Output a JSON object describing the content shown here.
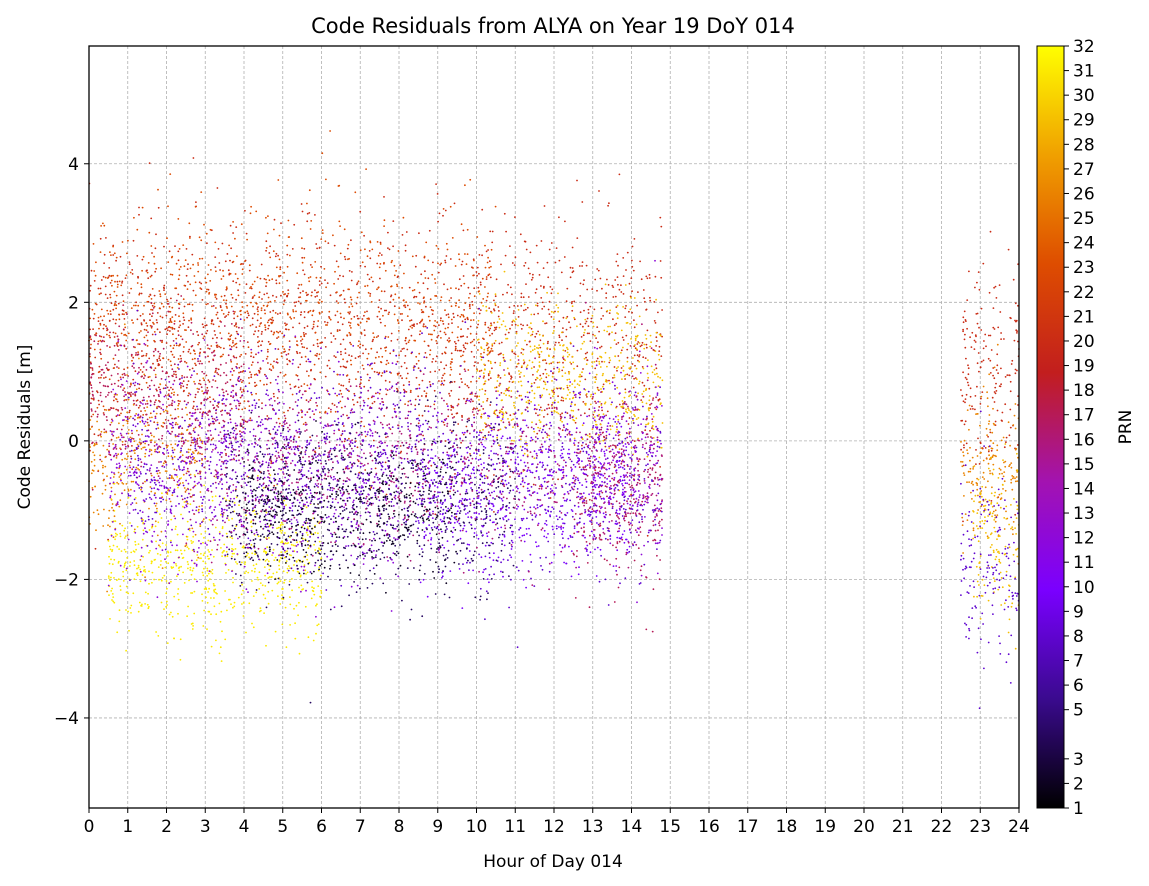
{
  "chart_data": {
    "type": "scatter",
    "title": "Code Residuals from ALYA on Year 19 DoY 014",
    "xlabel": "Hour of Day 014",
    "ylabel": "Code Residuals [m]",
    "colorbar_label": "PRN",
    "xlim": [
      0,
      24
    ],
    "ylim": [
      -5.3,
      5.7
    ],
    "x_ticks": [
      "0",
      "1",
      "2",
      "3",
      "4",
      "5",
      "6",
      "7",
      "8",
      "9",
      "10",
      "11",
      "12",
      "13",
      "14",
      "15",
      "16",
      "17",
      "18",
      "19",
      "20",
      "21",
      "22",
      "23",
      "24"
    ],
    "y_ticks": [
      "−4",
      "−2",
      "0",
      "2",
      "4"
    ],
    "y_tick_values": [
      -4,
      -2,
      0,
      2,
      4
    ],
    "colorbar_ticks": [
      "1",
      "2",
      "3",
      "5",
      "6",
      "7",
      "8",
      "9",
      "10",
      "11",
      "12",
      "13",
      "14",
      "15",
      "16",
      "17",
      "18",
      "19",
      "20",
      "21",
      "22",
      "23",
      "24",
      "25",
      "26",
      "27",
      "28",
      "29",
      "30",
      "31",
      "32"
    ],
    "colorbar_tick_values": [
      1,
      2,
      3,
      5,
      6,
      7,
      8,
      9,
      10,
      11,
      12,
      13,
      14,
      15,
      16,
      17,
      18,
      19,
      20,
      21,
      22,
      23,
      24,
      25,
      26,
      27,
      28,
      29,
      30,
      31,
      32
    ],
    "colormap": "gnuplot",
    "colormap_stops": [
      "#000000",
      "#3a0a8e",
      "#7a00ff",
      "#a313b0",
      "#c21e1e",
      "#de4d00",
      "#f0a000",
      "#ffff00"
    ],
    "grid": true,
    "grid_style": "dashed",
    "series": [
      {
        "prn": 20,
        "segments": [
          [
            0.0,
            14.8,
            1.4
          ],
          [
            22.5,
            24.0,
            0.9
          ]
        ],
        "spread": 0.85,
        "density": 120
      },
      {
        "prn": 23,
        "segments": [
          [
            0.0,
            10.5,
            1.8
          ]
        ],
        "spread": 0.75,
        "density": 90
      },
      {
        "prn": 17,
        "segments": [
          [
            0.0,
            4.0,
            0.6
          ],
          [
            12.5,
            14.8,
            -0.9
          ]
        ],
        "spread": 0.6,
        "density": 110
      },
      {
        "prn": 26,
        "segments": [
          [
            0.0,
            3.0,
            -0.3
          ],
          [
            22.5,
            24.0,
            -0.4
          ]
        ],
        "spread": 0.6,
        "density": 110
      },
      {
        "prn": 31,
        "segments": [
          [
            0.5,
            6.0,
            -1.8
          ]
        ],
        "spread": 0.5,
        "density": 120
      },
      {
        "prn": 29,
        "segments": [
          [
            10.0,
            14.8,
            0.9
          ],
          [
            22.8,
            24.0,
            -1.4
          ]
        ],
        "spread": 0.55,
        "density": 120
      },
      {
        "prn": 8,
        "segments": [
          [
            1.0,
            9.0,
            -0.2
          ],
          [
            9.0,
            14.8,
            -0.6
          ],
          [
            22.5,
            24.0,
            -1.8
          ]
        ],
        "spread": 0.7,
        "density": 100
      },
      {
        "prn": 12,
        "segments": [
          [
            0.5,
            8.0,
            -0.5
          ],
          [
            13.0,
            14.8,
            -0.4
          ]
        ],
        "spread": 0.7,
        "density": 110
      },
      {
        "prn": 4,
        "segments": [
          [
            3.5,
            11.0,
            -0.9
          ]
        ],
        "spread": 0.6,
        "density": 110
      },
      {
        "prn": 2,
        "segments": [
          [
            4.0,
            9.5,
            -1.0
          ]
        ],
        "spread": 0.45,
        "density": 90
      },
      {
        "prn": 16,
        "segments": [
          [
            2.5,
            14.8,
            -0.3
          ]
        ],
        "spread": 0.6,
        "density": 80
      },
      {
        "prn": 10,
        "segments": [
          [
            8.5,
            14.0,
            -0.7
          ]
        ],
        "spread": 0.6,
        "density": 110
      }
    ]
  }
}
